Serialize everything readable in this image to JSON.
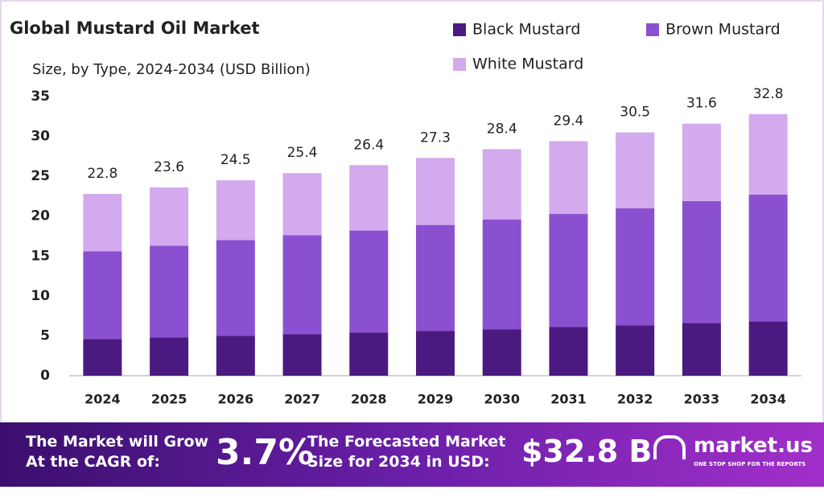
{
  "chart_data": {
    "type": "stacked_bar",
    "title": "Global Mustard Oil Market",
    "subtitle": "Size, by Type, 2024-2034 (USD Billion)",
    "categories": [
      "2024",
      "2025",
      "2026",
      "2027",
      "2028",
      "2029",
      "2030",
      "2031",
      "2032",
      "2033",
      "2034"
    ],
    "series": [
      {
        "name": "Black Mustard",
        "color": "#4b1a80",
        "values": [
          4.6,
          4.8,
          5.0,
          5.2,
          5.4,
          5.6,
          5.8,
          6.1,
          6.3,
          6.6,
          6.8
        ]
      },
      {
        "name": "Brown Mustard",
        "color": "#8a50d0",
        "values": [
          11.0,
          11.5,
          12.0,
          12.4,
          12.8,
          13.3,
          13.8,
          14.2,
          14.7,
          15.3,
          15.9
        ]
      },
      {
        "name": "White Mustard",
        "color": "#d2aaed",
        "values": [
          7.2,
          7.3,
          7.5,
          7.8,
          8.2,
          8.4,
          8.8,
          9.1,
          9.5,
          9.7,
          10.1
        ]
      }
    ],
    "totals": [
      22.8,
      23.6,
      24.5,
      25.4,
      26.4,
      27.3,
      28.4,
      29.4,
      30.5,
      31.6,
      32.8
    ],
    "ylim": [
      0,
      35
    ],
    "yticks": [
      0,
      5,
      10,
      15,
      20,
      25,
      30,
      35
    ],
    "grid": false
  },
  "banner": {
    "cagr_text": "The Market will Grow At the CAGR of:",
    "cagr": "3.7%",
    "forecast_text": "The Forecasted Market Size for 2034 in USD:",
    "forecast": "$32.8 B",
    "brand": "market.us",
    "tagline": "ONE STOP SHOP FOR THE REPORTS"
  }
}
